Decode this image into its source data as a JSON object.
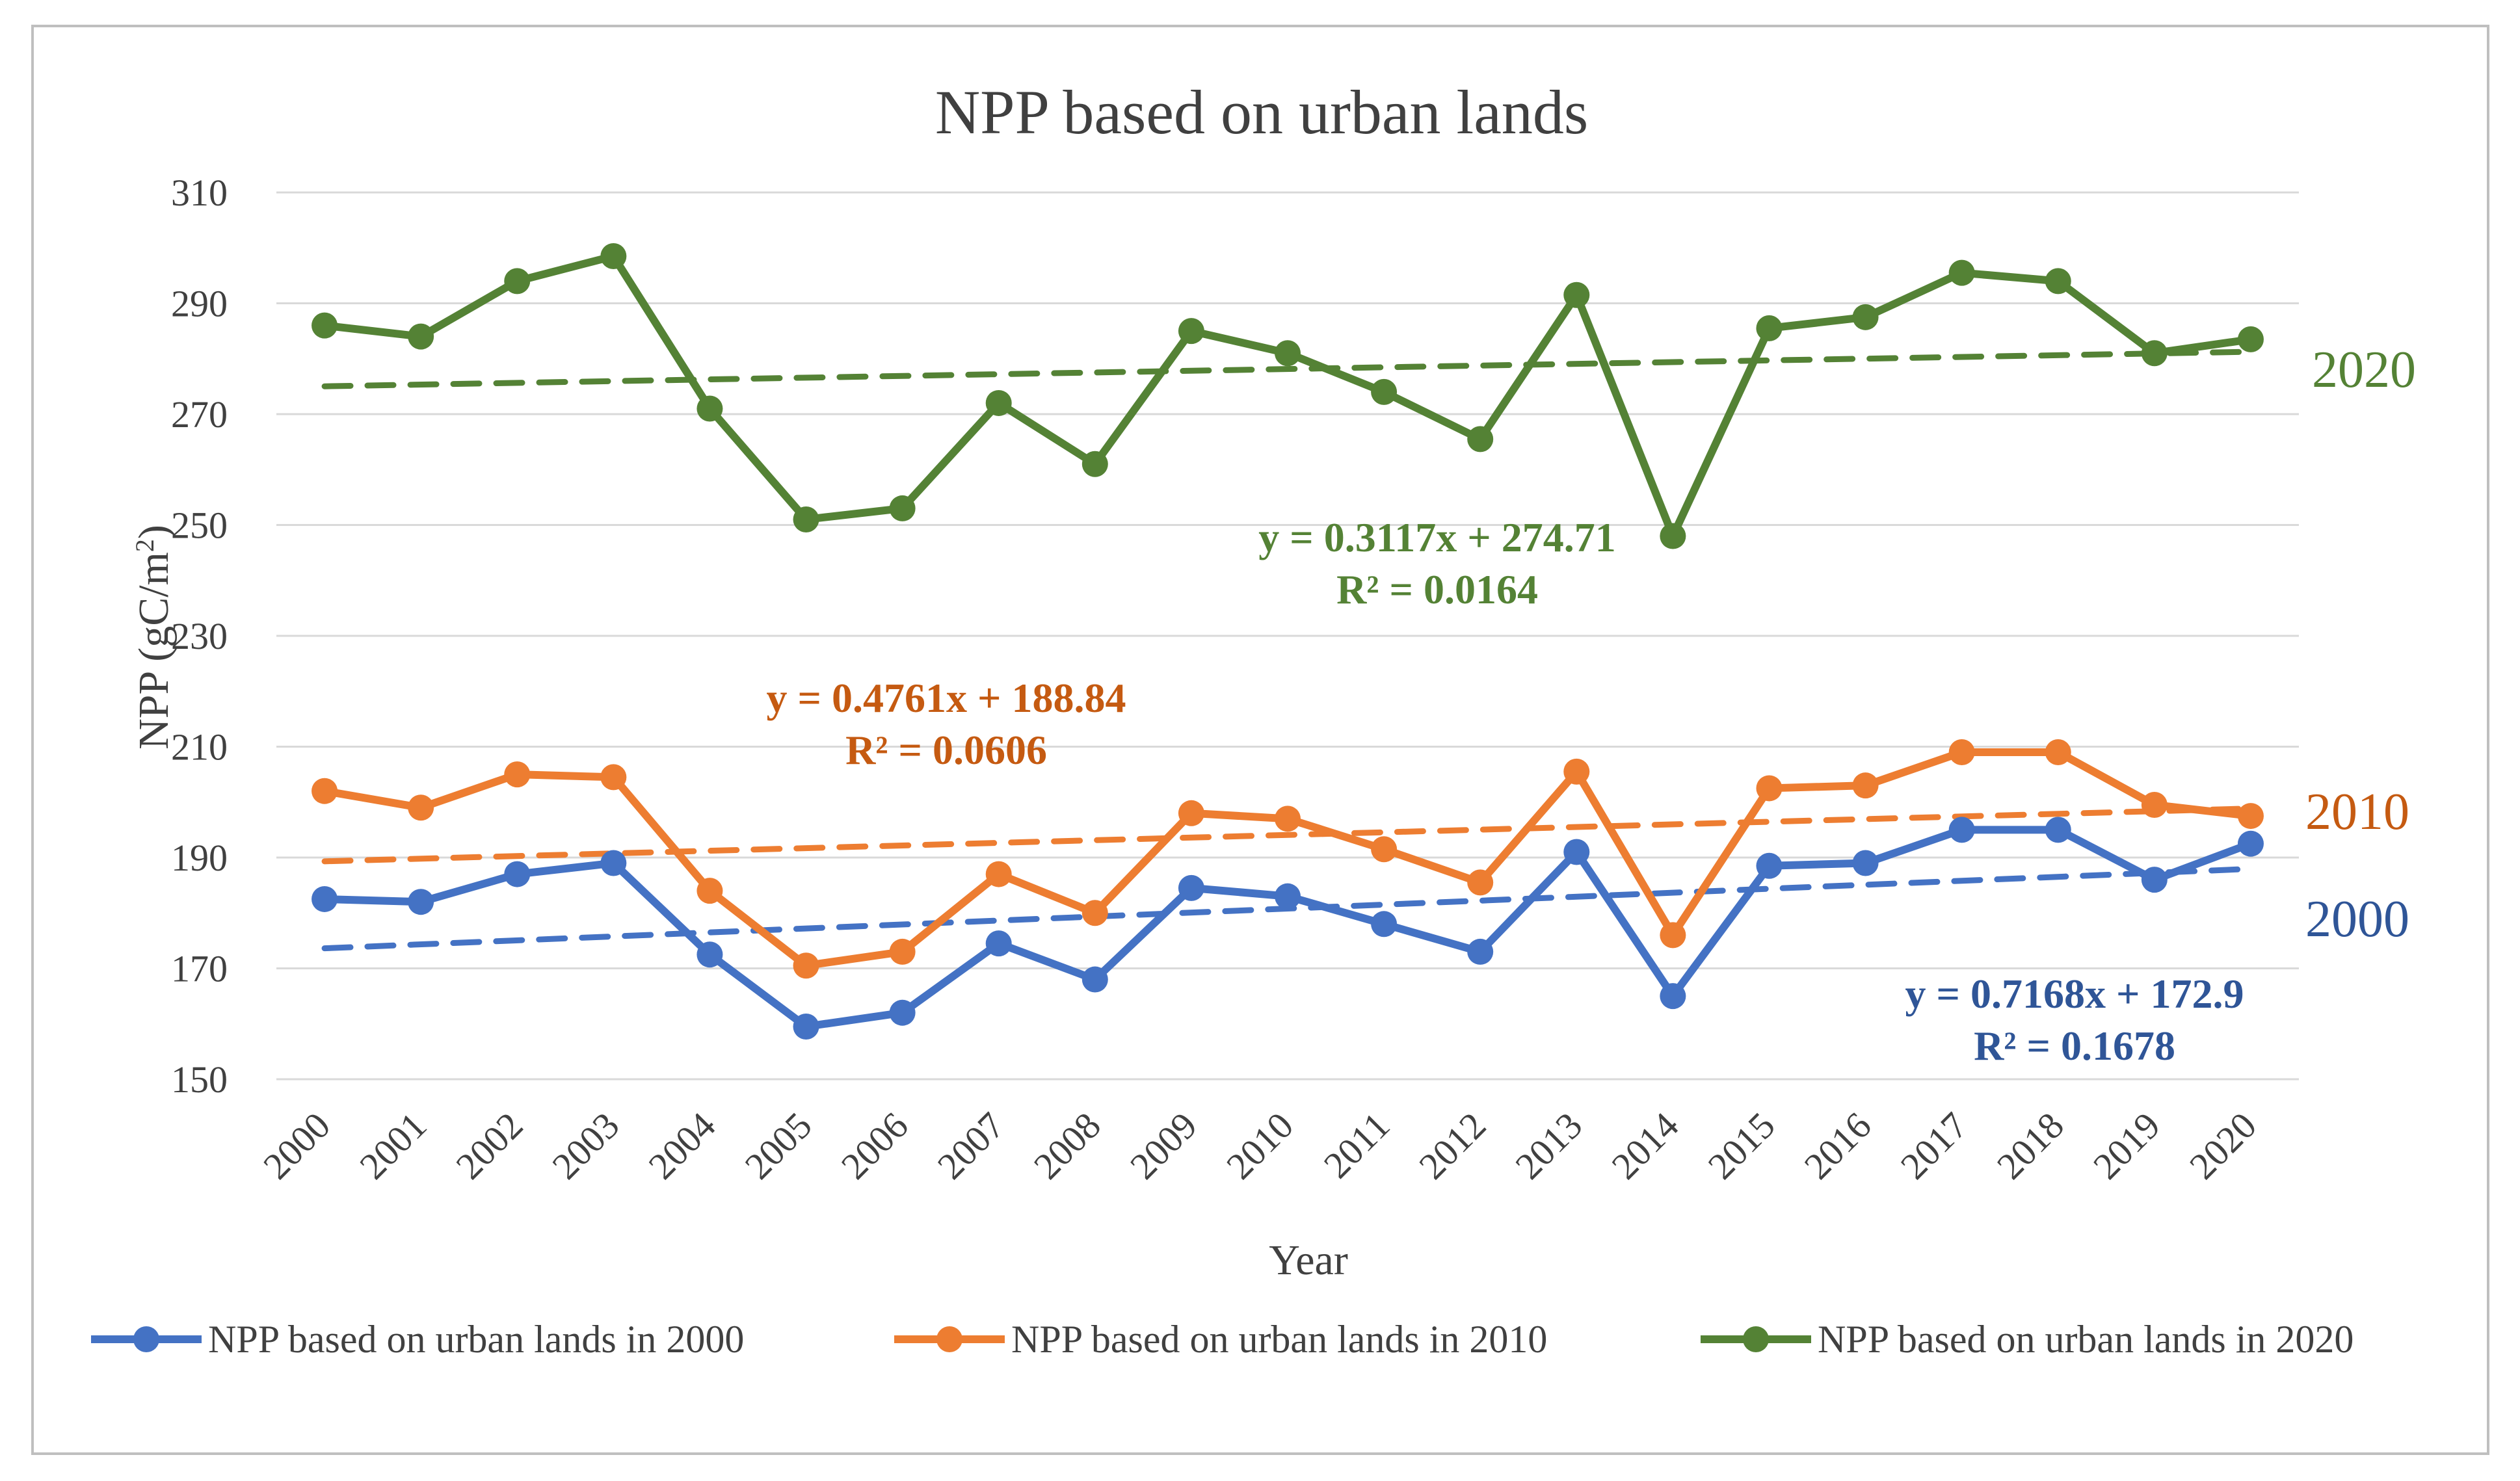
{
  "chart_data": {
    "type": "line",
    "title": "NPP based on urban lands",
    "xlabel": "Year",
    "ylabel": "NPP (gC/m",
    "ylabel_sup": "2",
    "ylabel_close": ")",
    "ylim": [
      150,
      310
    ],
    "yticks": [
      150,
      170,
      190,
      210,
      230,
      250,
      270,
      290,
      310
    ],
    "grid": "horizontal",
    "legend_position": "bottom",
    "categories": [
      "2000",
      "2001",
      "2002",
      "2003",
      "2004",
      "2005",
      "2006",
      "2007",
      "2008",
      "2009",
      "2010",
      "2011",
      "2012",
      "2013",
      "2014",
      "2015",
      "2016",
      "2017",
      "2018",
      "2019",
      "2020"
    ],
    "series": [
      {
        "name": "NPP based on urban lands in 2000",
        "end_label": "2000",
        "color": "#4472c4",
        "label_color": "#2f5597",
        "values": [
          182.5,
          182,
          187,
          189,
          172.5,
          159.5,
          162,
          174.5,
          168,
          184.5,
          183,
          178,
          173,
          191,
          165,
          188.5,
          189,
          195,
          195,
          186,
          192.5
        ],
        "trend": {
          "slope": 0.7168,
          "intercept": 172.9
        },
        "equation": "y = 0.7168x + 172.9",
        "r2": "R² = 0.1678"
      },
      {
        "name": "NPP based on urban lands in 2010",
        "end_label": "2010",
        "color": "#ed7d31",
        "label_color": "#c55a11",
        "values": [
          202,
          199,
          205,
          204.5,
          184,
          170.5,
          173,
          187,
          180,
          198,
          197,
          191.5,
          185.5,
          205.5,
          176,
          202.5,
          203,
          209,
          209,
          199.5,
          197.5
        ],
        "trend": {
          "slope": 0.4761,
          "intercept": 188.84
        },
        "equation": "y = 0.4761x + 188.84",
        "r2": "R² = 0.0606"
      },
      {
        "name": "NPP based on urban lands in 2020",
        "end_label": "2020",
        "color": "#548235",
        "label_color": "#548235",
        "values": [
          286,
          284,
          294,
          298.5,
          271,
          251,
          253,
          272,
          261,
          285,
          281,
          274,
          265.5,
          291.5,
          248,
          285.5,
          287.5,
          295.5,
          294,
          281,
          283.5
        ],
        "trend": {
          "slope": 0.3117,
          "intercept": 274.71
        },
        "equation": "y = 0.3117x + 274.71",
        "r2": "R² = 0.0164"
      }
    ]
  }
}
